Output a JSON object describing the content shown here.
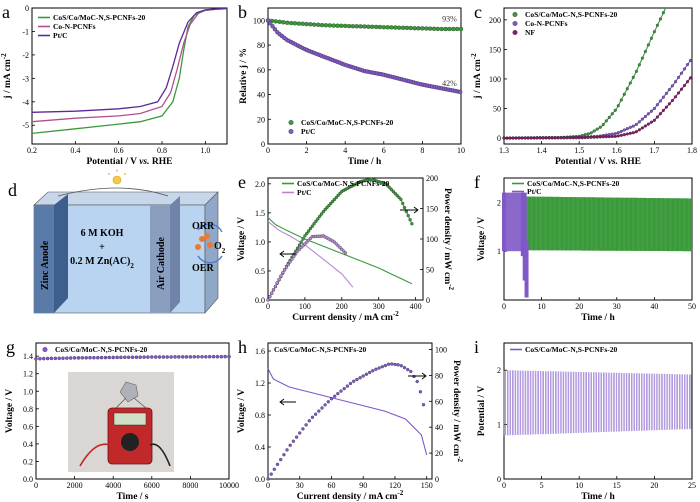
{
  "colors": {
    "green": "#3a9a3a",
    "purple": "#8058c8",
    "pink": "#b05090",
    "darkpurple": "#5a2a9a",
    "magenta": "#8a1a6a",
    "lightpurple": "#b68ad6",
    "slate": "#445"
  },
  "panels": {
    "a": {
      "letter": "a",
      "xlabel": "Potential / V vs. RHE",
      "ylabel": "j / mA cm-2",
      "xticks": [
        "0.2",
        "0.4",
        "0.6",
        "0.8",
        "1.0"
      ],
      "yticks": [
        "0",
        "-1",
        "-2",
        "-3",
        "-4",
        "-5"
      ]
    },
    "b": {
      "letter": "b",
      "xlabel": "Time / h",
      "ylabel": "Relative j / %",
      "xticks": [
        "0",
        "2",
        "4",
        "6",
        "8",
        "10"
      ],
      "yticks": [
        "100",
        "80",
        "60",
        "40",
        "20",
        "0"
      ],
      "ann1": "93%",
      "ann2": "42%"
    },
    "c": {
      "letter": "c",
      "xlabel": "Potential / V vs. RHE",
      "ylabel": "j / mA cm-2",
      "xticks": [
        "1.3",
        "1.4",
        "1.5",
        "1.6",
        "1.7",
        "1.8"
      ],
      "yticks": [
        "200",
        "150",
        "100",
        "50",
        "0"
      ]
    },
    "d": {
      "letter": "d",
      "anode": "Zinc Anode",
      "cathode": "Air Cathode",
      "electrolyte1": "6 M KOH",
      "plus": "+",
      "electrolyte2": "0.2 M Zn(AC)",
      "sub2": "2",
      "orr": "ORR",
      "oer": "OER",
      "o2": "O",
      "o2sub": "2"
    },
    "e": {
      "letter": "e",
      "xlabel": "Current density / mA cm-2",
      "ylabel": "Voltage / V",
      "y2label": "Power density / mW cm-2",
      "xticks": [
        "0",
        "100",
        "200",
        "300",
        "400"
      ],
      "yticks": [
        "0.0",
        "0.5",
        "1.0",
        "1.5",
        "2.0"
      ],
      "y2ticks": [
        "0",
        "50",
        "100",
        "150",
        "200"
      ]
    },
    "f": {
      "letter": "f",
      "xlabel": "Time / h",
      "ylabel": "Voltage / V",
      "xticks": [
        "0",
        "10",
        "20",
        "30",
        "40",
        "50"
      ],
      "yticks": [
        "2",
        "1"
      ]
    },
    "g": {
      "letter": "g",
      "xlabel": "Time / s",
      "ylabel": "Voltage / V",
      "xticks": [
        "0",
        "2000",
        "4000",
        "6000",
        "8000",
        "10000"
      ],
      "yticks": [
        "1.4",
        "1.2",
        "1.0",
        "0.8",
        "0.6",
        "0.4",
        "0.2",
        "0.0"
      ]
    },
    "h": {
      "letter": "h",
      "xlabel": "Current density / mA cm-2",
      "ylabel": "Voltage / V",
      "y2label": "Power density / mW cm-2",
      "xticks": [
        "0",
        "30",
        "60",
        "90",
        "120",
        "150"
      ],
      "yticks": [
        "1.6",
        "1.2",
        "0.8",
        "0.4",
        "0.0"
      ],
      "y2ticks": [
        "100",
        "80",
        "60",
        "40",
        "20",
        "0"
      ]
    },
    "i": {
      "letter": "i",
      "xlabel": "Time / h",
      "ylabel": "Potential / V",
      "xticks": [
        "0",
        "5",
        "10",
        "15",
        "20",
        "25"
      ],
      "yticks": [
        "2",
        "1",
        "0"
      ]
    }
  },
  "chart_data": [
    {
      "panel": "a",
      "type": "line",
      "xlim": [
        0.2,
        1.1
      ],
      "ylim": [
        -5.8,
        0
      ],
      "series": [
        {
          "name": "CoS/Co/MoC-N,S-PCNFs-20",
          "color": "#3a9a3a",
          "x": [
            0.2,
            0.4,
            0.6,
            0.7,
            0.8,
            0.85,
            0.88,
            0.9,
            0.92,
            0.95,
            1.0,
            1.05,
            1.1
          ],
          "y": [
            -5.35,
            -5.15,
            -4.95,
            -4.85,
            -4.6,
            -4.0,
            -3.0,
            -1.8,
            -0.8,
            -0.3,
            -0.1,
            -0.05,
            -0.03
          ]
        },
        {
          "name": "Co-N-PCNFs",
          "color": "#b05090",
          "x": [
            0.2,
            0.4,
            0.6,
            0.7,
            0.8,
            0.84,
            0.87,
            0.9,
            0.93,
            0.97,
            1.0,
            1.05,
            1.1
          ],
          "y": [
            -4.85,
            -4.7,
            -4.6,
            -4.5,
            -4.2,
            -3.6,
            -2.6,
            -1.5,
            -0.7,
            -0.2,
            -0.1,
            -0.05,
            -0.03
          ]
        },
        {
          "name": "Pt/C",
          "color": "#5a2a9a",
          "x": [
            0.2,
            0.4,
            0.6,
            0.7,
            0.78,
            0.82,
            0.85,
            0.88,
            0.92,
            0.96,
            1.0,
            1.05,
            1.1
          ],
          "y": [
            -4.45,
            -4.4,
            -4.3,
            -4.2,
            -4.0,
            -3.4,
            -2.5,
            -1.5,
            -0.6,
            -0.2,
            -0.08,
            -0.04,
            -0.02
          ]
        }
      ]
    },
    {
      "panel": "b",
      "type": "scatter",
      "xlim": [
        0,
        10
      ],
      "ylim": [
        0,
        110
      ],
      "series": [
        {
          "name": "CoS/Co/MoC-N,S-PCNFs-20",
          "color": "#3a9a3a",
          "x": [
            0,
            1,
            2,
            3,
            4,
            5,
            6,
            7,
            8,
            9,
            10
          ],
          "y": [
            100,
            98,
            97,
            96,
            95.5,
            95,
            94.5,
            94,
            93.5,
            93,
            93
          ]
        },
        {
          "name": "Pt/C",
          "color": "#8058c8",
          "x": [
            0,
            0.5,
            1,
            2,
            3,
            4,
            5,
            6,
            7,
            8,
            9,
            10
          ],
          "y": [
            100,
            90,
            84,
            76,
            70,
            64,
            59,
            56,
            52,
            48,
            45,
            42
          ]
        }
      ]
    },
    {
      "panel": "c",
      "type": "line",
      "xlim": [
        1.3,
        1.8
      ],
      "ylim": [
        -10,
        220
      ],
      "series": [
        {
          "name": "CoS/Co/MoC-N,S-PCNFs-20",
          "color": "#3a9a3a",
          "x": [
            1.3,
            1.45,
            1.5,
            1.53,
            1.56,
            1.6,
            1.65,
            1.7,
            1.73
          ],
          "y": [
            0,
            1,
            3,
            8,
            20,
            50,
            110,
            180,
            220
          ]
        },
        {
          "name": "Co-N-PCNFs",
          "color": "#8058c8",
          "x": [
            1.3,
            1.5,
            1.55,
            1.6,
            1.65,
            1.7,
            1.75,
            1.8
          ],
          "y": [
            0,
            1,
            3,
            8,
            22,
            50,
            90,
            135
          ]
        },
        {
          "name": "NF",
          "color": "#8a1a6a",
          "x": [
            1.3,
            1.5,
            1.6,
            1.65,
            1.7,
            1.75,
            1.8
          ],
          "y": [
            0,
            0.5,
            3,
            10,
            30,
            65,
            105
          ]
        }
      ]
    },
    {
      "panel": "e",
      "type": "line",
      "xlim": [
        0,
        420
      ],
      "ylim": [
        0,
        2.1
      ],
      "y2lim": [
        0,
        200
      ],
      "series": [
        {
          "name": "CoS/Co/MoC-N,S-PCNFs-20",
          "color": "#3a9a3a",
          "axis": "left",
          "x": [
            0,
            20,
            50,
            100,
            200,
            300,
            390
          ],
          "y": [
            1.42,
            1.3,
            1.2,
            1.05,
            0.8,
            0.55,
            0.28
          ]
        },
        {
          "name": "Pt/C",
          "color": "#b68ad6",
          "axis": "left",
          "x": [
            0,
            30,
            60,
            100,
            150,
            200,
            230
          ],
          "y": [
            1.35,
            1.2,
            1.1,
            0.95,
            0.7,
            0.45,
            0.22
          ]
        },
        {
          "name": "CoS/Co/MoC-N,S-PCNFs-20",
          "color": "#3a9a3a",
          "axis": "right",
          "x": [
            0,
            50,
            100,
            150,
            200,
            250,
            280,
            320,
            360,
            390
          ],
          "y": [
            0,
            55,
            105,
            145,
            178,
            194,
            198,
            190,
            165,
            125
          ]
        },
        {
          "name": "Pt/C",
          "color": "#b68ad6",
          "axis": "right",
          "x": [
            0,
            40,
            80,
            120,
            150,
            180,
            210
          ],
          "y": [
            0,
            45,
            80,
            104,
            105,
            95,
            77
          ]
        }
      ]
    },
    {
      "panel": "f",
      "type": "area",
      "xlim": [
        0,
        50
      ],
      "ylim": [
        0,
        2.5
      ],
      "series": [
        {
          "name": "CoS/Co/MoC-N,S-PCNFs-20",
          "color": "#3a9a3a",
          "x": [
            6,
            50
          ],
          "upper": [
            2.12,
            2.08
          ],
          "lower": [
            1.02,
            1.0
          ]
        },
        {
          "name": "Pt/C",
          "color": "#8058c8",
          "x": [
            0,
            5,
            5.5,
            6
          ],
          "upper": [
            2.2,
            2.2,
            2.2,
            1.2
          ],
          "lower": [
            1.0,
            0.9,
            0.4,
            0.05
          ]
        }
      ]
    },
    {
      "panel": "g",
      "type": "scatter",
      "xlim": [
        0,
        10000
      ],
      "ylim": [
        0,
        1.55
      ],
      "series": [
        {
          "name": "CoS/Co/MoC-N,S-PCNFs-20",
          "color": "#8058c8",
          "x": [
            0,
            2000,
            4000,
            6000,
            8000,
            10000
          ],
          "y": [
            1.37,
            1.38,
            1.385,
            1.39,
            1.392,
            1.395
          ]
        }
      ]
    },
    {
      "panel": "h",
      "type": "line",
      "xlim": [
        0,
        155
      ],
      "ylim": [
        0,
        1.7
      ],
      "y2lim": [
        0,
        105
      ],
      "series": [
        {
          "name": "CoS/Co/MoC-N,S-PCNFs-20",
          "color": "#8058c8",
          "axis": "left",
          "x": [
            0,
            5,
            20,
            50,
            80,
            110,
            130,
            145,
            150
          ],
          "y": [
            1.38,
            1.25,
            1.15,
            1.05,
            0.95,
            0.85,
            0.75,
            0.55,
            0.3
          ]
        },
        {
          "name": "CoS/Co/MoC-N,S-PCNFs-20",
          "color": "#8058c8",
          "axis": "right",
          "x": [
            0,
            20,
            40,
            60,
            80,
            100,
            115,
            125,
            135,
            142,
            148
          ],
          "y": [
            0,
            25,
            46,
            62,
            75,
            84,
            89,
            88,
            83,
            74,
            54
          ]
        }
      ]
    },
    {
      "panel": "i",
      "type": "area",
      "xlim": [
        0,
        25
      ],
      "ylim": [
        0,
        2.5
      ],
      "series": [
        {
          "name": "CoS/Co/MoC-N,S-PCNFs-20",
          "color": "#8058c8",
          "x": [
            0,
            25
          ],
          "upper": [
            2.0,
            1.92
          ],
          "lower": [
            0.8,
            0.92
          ]
        }
      ]
    }
  ]
}
